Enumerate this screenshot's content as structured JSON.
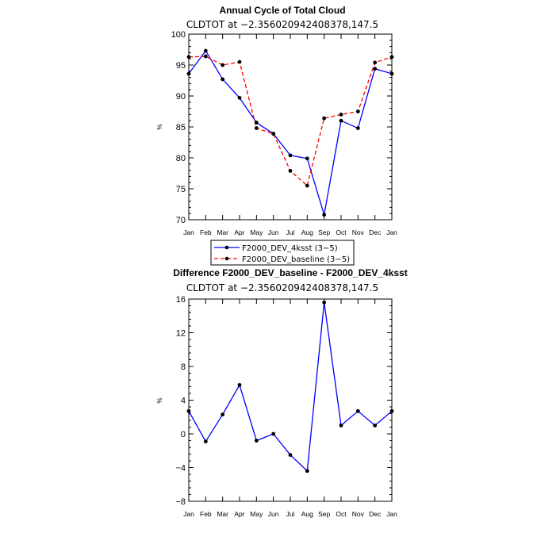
{
  "chart_data": [
    {
      "type": "line",
      "title": "Annual Cycle of Total Cloud",
      "subtitle": "CLDTOT at −2.356020942408378,147.5",
      "ylabel": "%",
      "ylim": [
        70,
        100
      ],
      "yticks": [
        70,
        75,
        80,
        85,
        90,
        95,
        100
      ],
      "categories": [
        "Jan",
        "Feb",
        "Mar",
        "Apr",
        "May",
        "Jun",
        "Jul",
        "Aug",
        "Sep",
        "Oct",
        "Nov",
        "Dec",
        "Jan"
      ],
      "series": [
        {
          "name": "F2000_DEV_4ksst (3−5)",
          "color": "#0000ff",
          "dash": "solid",
          "values": [
            93.6,
            97.3,
            92.7,
            89.7,
            85.7,
            83.9,
            80.4,
            79.9,
            70.8,
            86.0,
            84.8,
            94.4,
            93.6
          ]
        },
        {
          "name": "F2000_DEV_baseline (3−5)",
          "color": "#ff0000",
          "dash": "dashed",
          "values": [
            96.3,
            96.4,
            95.0,
            95.5,
            84.8,
            83.9,
            77.9,
            75.5,
            86.4,
            87.0,
            87.5,
            95.4,
            96.3
          ]
        }
      ],
      "legend_position": "below"
    },
    {
      "type": "line",
      "title": "Difference F2000_DEV_baseline - F2000_DEV_4ksst",
      "subtitle": "CLDTOT at −2.356020942408378,147.5",
      "ylabel": "%",
      "ylim": [
        -8,
        16
      ],
      "yticks": [
        -8,
        -4,
        0,
        4,
        8,
        12,
        16
      ],
      "ytick_labels": [
        "−8",
        "−4",
        "0",
        "4",
        "8",
        "12",
        "16"
      ],
      "categories": [
        "Jan",
        "Feb",
        "Mar",
        "Apr",
        "May",
        "Jun",
        "Jul",
        "Aug",
        "Sep",
        "Oct",
        "Nov",
        "Dec",
        "Jan"
      ],
      "series": [
        {
          "name": "baseline - 4ksst",
          "color": "#0000ff",
          "dash": "solid",
          "values": [
            2.7,
            -0.9,
            2.3,
            5.8,
            -0.8,
            0.0,
            -2.5,
            -4.4,
            15.6,
            1.0,
            2.7,
            1.0,
            2.7
          ]
        }
      ]
    }
  ]
}
